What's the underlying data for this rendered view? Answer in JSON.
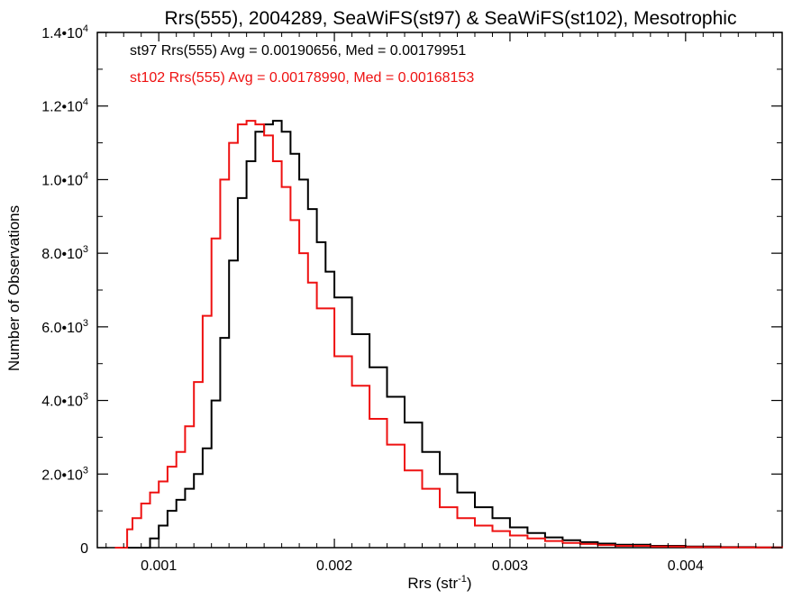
{
  "chart_data": {
    "type": "line",
    "title": "Rrs(555), 2004289, SeaWiFS(st97) & SeaWiFS(st102), Mesotrophic",
    "xlabel": "Rrs (str",
    "xlabel_sup": "-1",
    "xlabel_close": ")",
    "ylabel": "Number of Observations",
    "xlim": [
      0.00065,
      0.00455
    ],
    "ylim": [
      0,
      14000
    ],
    "x_ticks": [
      {
        "value": 0.001,
        "label": "0.001"
      },
      {
        "value": 0.002,
        "label": "0.002"
      },
      {
        "value": 0.003,
        "label": "0.003"
      },
      {
        "value": 0.004,
        "label": "0.004"
      }
    ],
    "y_ticks": [
      {
        "value": 0,
        "base": "0",
        "exp": ""
      },
      {
        "value": 2000,
        "base": "2.0•10",
        "exp": "3"
      },
      {
        "value": 4000,
        "base": "4.0•10",
        "exp": "3"
      },
      {
        "value": 6000,
        "base": "6.0•10",
        "exp": "3"
      },
      {
        "value": 8000,
        "base": "8.0•10",
        "exp": "3"
      },
      {
        "value": 10000,
        "base": "1.0•10",
        "exp": "4"
      },
      {
        "value": 12000,
        "base": "1.2•10",
        "exp": "4"
      },
      {
        "value": 14000,
        "base": "1.4•10",
        "exp": "4"
      }
    ],
    "annotations": [
      {
        "text": "st97 Rrs(555) Avg = 0.00190656, Med = 0.00179951",
        "color": "#000000"
      },
      {
        "text": "st102 Rrs(555) Avg = 0.00178990, Med = 0.00168153",
        "color": "#ee1111"
      }
    ],
    "grid": false,
    "series": [
      {
        "color": "#000000",
        "x": [
          0.0008,
          0.00085,
          0.0009,
          0.00095,
          0.001,
          0.00105,
          0.0011,
          0.00115,
          0.0012,
          0.00125,
          0.0013,
          0.00135,
          0.0014,
          0.00145,
          0.0015,
          0.00155,
          0.0016,
          0.00165,
          0.0017,
          0.00175,
          0.0018,
          0.00185,
          0.0019,
          0.00195,
          0.002,
          0.0021,
          0.0022,
          0.0023,
          0.0024,
          0.0025,
          0.0026,
          0.0027,
          0.0028,
          0.0029,
          0.003,
          0.0031,
          0.0032,
          0.0033,
          0.0034,
          0.0035,
          0.0036,
          0.0038,
          0.004,
          0.0042,
          0.0044,
          0.00455
        ],
        "y": [
          0,
          0,
          0,
          250,
          600,
          1000,
          1300,
          1600,
          2000,
          2700,
          4000,
          5700,
          7800,
          9500,
          10500,
          11300,
          11500,
          11600,
          11300,
          10700,
          10000,
          9200,
          8300,
          7500,
          6800,
          5800,
          4900,
          4100,
          3400,
          2600,
          2000,
          1500,
          1100,
          800,
          550,
          400,
          280,
          200,
          150,
          110,
          80,
          50,
          30,
          15,
          8,
          0
        ]
      },
      {
        "color": "#ee1111",
        "x": [
          0.00075,
          0.0008,
          0.00082,
          0.00085,
          0.0009,
          0.00095,
          0.001,
          0.00105,
          0.0011,
          0.00115,
          0.0012,
          0.00125,
          0.0013,
          0.00135,
          0.0014,
          0.00145,
          0.0015,
          0.00155,
          0.0016,
          0.00165,
          0.0017,
          0.00175,
          0.0018,
          0.00185,
          0.0019,
          0.002,
          0.0021,
          0.0022,
          0.0023,
          0.0024,
          0.0025,
          0.0026,
          0.0027,
          0.0028,
          0.0029,
          0.003,
          0.0031,
          0.0032,
          0.0033,
          0.0034,
          0.0035,
          0.0036,
          0.0038,
          0.004,
          0.0042,
          0.0044,
          0.00455
        ],
        "y": [
          0,
          0,
          500,
          800,
          1200,
          1500,
          1800,
          2200,
          2600,
          3300,
          4500,
          6300,
          8400,
          10000,
          11000,
          11500,
          11600,
          11500,
          11200,
          10500,
          9800,
          8900,
          8000,
          7200,
          6500,
          5200,
          4400,
          3500,
          2800,
          2100,
          1600,
          1100,
          800,
          600,
          450,
          330,
          250,
          180,
          130,
          100,
          70,
          50,
          30,
          15,
          8,
          4,
          0
        ]
      }
    ]
  }
}
